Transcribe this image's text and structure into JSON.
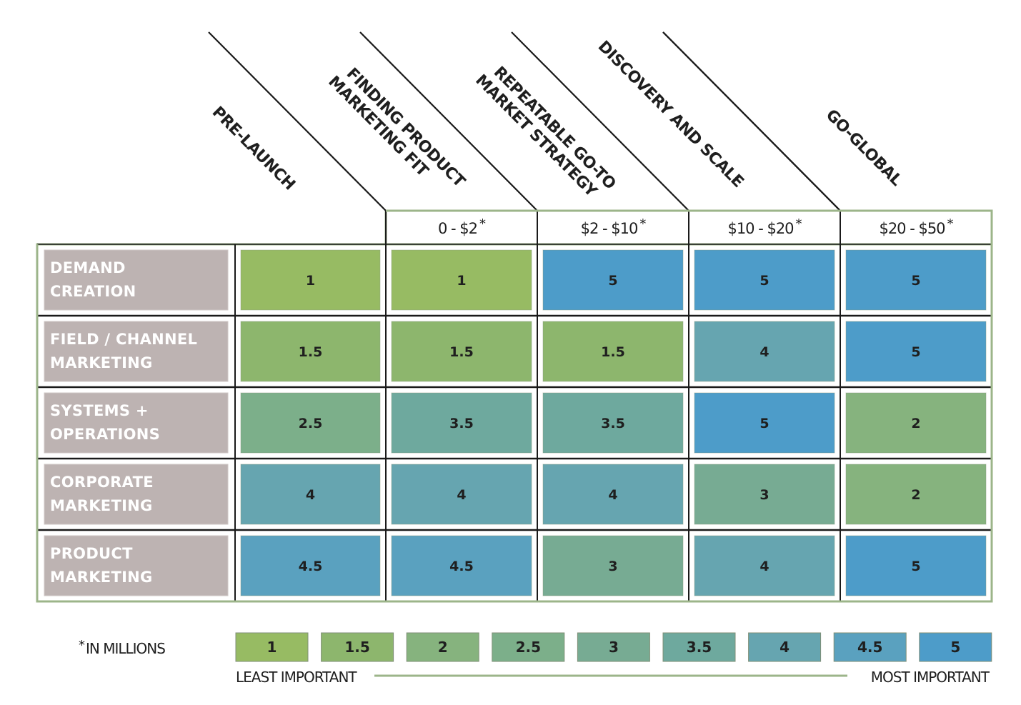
{
  "chart_data": {
    "type": "heatmap",
    "title": "",
    "columns": [
      {
        "phase": "PRE-LAUNCH",
        "range": ""
      },
      {
        "phase": "FINDING PRODUCT MARKETING FIT",
        "phase_lines": [
          "FINDING PRODUCT",
          "MARKETING FIT"
        ],
        "range": "0 - $2",
        "range_mark": "*"
      },
      {
        "phase": "REPEATABLE GO-TO MARKET STRATEGY",
        "phase_lines": [
          "REPEATABLE GO-TO",
          "MARKET STRATEGY"
        ],
        "range": "$2 - $10",
        "range_mark": "*"
      },
      {
        "phase": "DISCOVERY AND SCALE",
        "range": "$10 - $20",
        "range_mark": "*"
      },
      {
        "phase": "GO-GLOBAL",
        "range": "$20 - $50",
        "range_mark": "*"
      }
    ],
    "rows": [
      {
        "label_lines": [
          "DEMAND",
          "CREATION"
        ],
        "values": [
          1,
          1,
          5,
          5,
          5
        ]
      },
      {
        "label_lines": [
          "FIELD / CHANNEL",
          "MARKETING"
        ],
        "values": [
          1.5,
          1.5,
          1.5,
          4,
          5
        ]
      },
      {
        "label_lines": [
          "SYSTEMS +",
          "OPERATIONS"
        ],
        "values": [
          2.5,
          3.5,
          3.5,
          5,
          2
        ]
      },
      {
        "label_lines": [
          "CORPORATE",
          "MARKETING"
        ],
        "values": [
          4,
          4,
          4,
          3,
          2
        ]
      },
      {
        "label_lines": [
          "PRODUCT",
          "MARKETING"
        ],
        "values": [
          4.5,
          4.5,
          3,
          4,
          5
        ]
      }
    ],
    "scale": [
      {
        "value": "1",
        "color": "#97bb63"
      },
      {
        "value": "1.5",
        "color": "#8db66d"
      },
      {
        "value": "2",
        "color": "#86b37e"
      },
      {
        "value": "2.5",
        "color": "#7caf8a"
      },
      {
        "value": "3",
        "color": "#77ab93"
      },
      {
        "value": "3.5",
        "color": "#6ea99e"
      },
      {
        "value": "4",
        "color": "#66a5b0"
      },
      {
        "value": "4.5",
        "color": "#5aa1bf"
      },
      {
        "value": "5",
        "color": "#4d9cc9"
      }
    ],
    "scale_low_label": "LEAST IMPORTANT",
    "scale_high_label": "MOST IMPORTANT",
    "footnote_mark": "*",
    "footnote": "IN MILLIONS",
    "colors": {
      "row_label_bg": "#bdb3b2",
      "frame_green": "#9cb58a",
      "grid_line": "#1a1a1a"
    }
  }
}
